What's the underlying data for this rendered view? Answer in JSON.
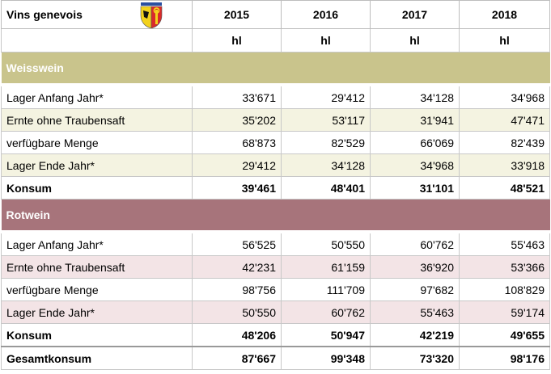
{
  "header": {
    "title": "Vins genevois",
    "years": [
      "2015",
      "2016",
      "2017",
      "2018"
    ],
    "units": [
      "hl",
      "hl",
      "hl",
      "hl"
    ]
  },
  "sections": [
    {
      "name": "Weisswein",
      "rows": [
        {
          "label": "Lager Anfang Jahr*",
          "values": [
            "33'671",
            "29'412",
            "34'128",
            "34'968"
          ]
        },
        {
          "label": "Ernte ohne Traubensaft",
          "values": [
            "35'202",
            "53'117",
            "31'941",
            "47'471"
          ]
        },
        {
          "label": "verfügbare Menge",
          "values": [
            "68'873",
            "82'529",
            "66'069",
            "82'439"
          ]
        },
        {
          "label": "Lager Ende Jahr*",
          "values": [
            "29'412",
            "34'128",
            "34'968",
            "33'918"
          ]
        },
        {
          "label": "Konsum",
          "values": [
            "39'461",
            "48'401",
            "31'101",
            "48'521"
          ]
        }
      ]
    },
    {
      "name": "Rotwein",
      "rows": [
        {
          "label": "Lager Anfang Jahr*",
          "values": [
            "56'525",
            "50'550",
            "60'762",
            "55'463"
          ]
        },
        {
          "label": "Ernte ohne Traubensaft",
          "values": [
            "42'231",
            "61'159",
            "36'920",
            "53'366"
          ]
        },
        {
          "label": "verfügbare Menge",
          "values": [
            "98'756",
            "111'709",
            "97'682",
            "108'829"
          ]
        },
        {
          "label": "Lager Ende Jahr*",
          "values": [
            "50'550",
            "60'762",
            "55'463",
            "59'174"
          ]
        },
        {
          "label": "Konsum",
          "values": [
            "48'206",
            "50'947",
            "42'219",
            "49'655"
          ]
        }
      ]
    }
  ],
  "total": {
    "label": "Gesamtkonsum",
    "values": [
      "87'667",
      "99'348",
      "73'320",
      "98'176"
    ]
  }
}
